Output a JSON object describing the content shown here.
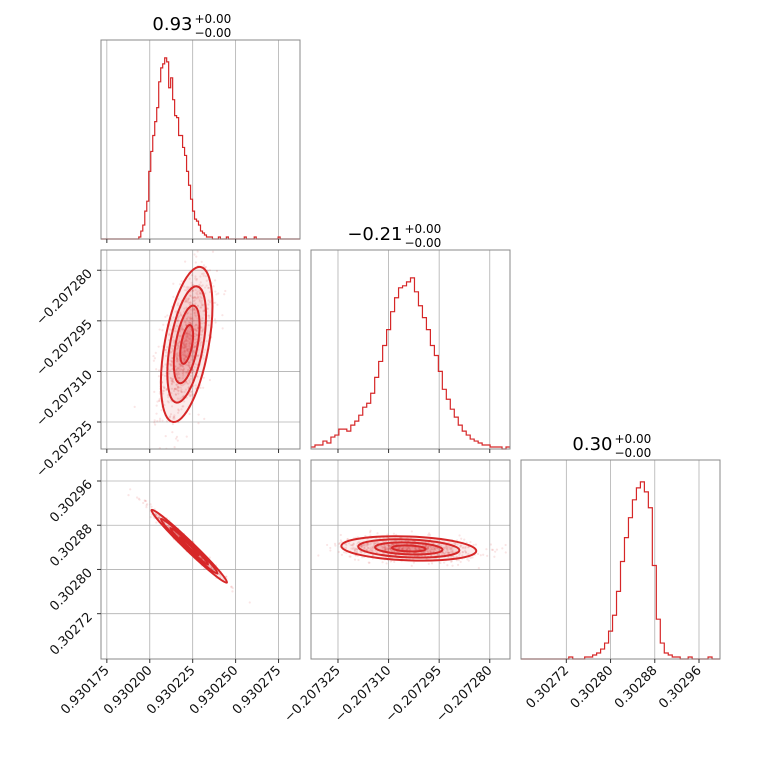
{
  "chart_data": {
    "type": "corner",
    "color": "#d62728",
    "parameters": [
      {
        "title": "0.93",
        "err_plus": "+0.00",
        "err_minus": "−0.00"
      },
      {
        "title": "−0.21",
        "err_plus": "+0.00",
        "err_minus": "−0.00"
      },
      {
        "title": "0.30",
        "err_plus": "+0.00",
        "err_minus": "−0.00"
      }
    ],
    "histograms": [
      {
        "param": 0,
        "xlim": [
          0.9301716,
          0.9302875
        ],
        "ylim": [
          0,
          1
        ],
        "values": [
          0.0,
          0.0,
          0.0,
          0.0,
          0.0,
          0.0,
          0.0,
          0.0,
          0.0,
          0.0,
          0.0,
          0.0,
          0.0,
          0.0,
          0.0,
          0.0,
          0.0,
          0.0,
          0.0,
          0.01,
          0.04,
          0.07,
          0.14,
          0.19,
          0.34,
          0.44,
          0.52,
          0.59,
          0.66,
          0.79,
          0.86,
          0.88,
          0.91,
          0.89,
          0.76,
          0.81,
          0.7,
          0.62,
          0.61,
          0.52,
          0.52,
          0.46,
          0.42,
          0.34,
          0.27,
          0.2,
          0.14,
          0.1,
          0.09,
          0.07,
          0.04,
          0.03,
          0.02,
          0.01,
          0.01,
          0.01,
          0.0,
          0.0,
          0.0,
          0.01,
          0.0,
          0.0,
          0.0,
          0.01,
          0.0,
          0.0,
          0.0,
          0.0,
          0.0,
          0.0,
          0.0,
          0.0,
          0.01,
          0.0,
          0.0,
          0.0,
          0.0,
          0.01,
          0.0,
          0.0,
          0.0,
          0.0,
          0.0,
          0.0,
          0.0,
          0.0,
          0.0,
          0.0,
          0.0,
          0.01,
          0.0,
          0.0,
          0.0,
          0.0,
          0.0,
          0.0,
          0.0,
          0.0,
          0.0,
          0.0
        ]
      },
      {
        "param": 1,
        "xlim": [
          -0.207333,
          -0.207274
        ],
        "ylim": [
          0,
          1
        ],
        "values": [
          0.01,
          0.02,
          0.02,
          0.04,
          0.03,
          0.06,
          0.07,
          0.1,
          0.1,
          0.09,
          0.12,
          0.14,
          0.17,
          0.21,
          0.23,
          0.28,
          0.36,
          0.44,
          0.52,
          0.6,
          0.69,
          0.76,
          0.81,
          0.82,
          0.84,
          0.86,
          0.79,
          0.72,
          0.66,
          0.6,
          0.52,
          0.47,
          0.39,
          0.3,
          0.25,
          0.2,
          0.16,
          0.12,
          0.09,
          0.07,
          0.05,
          0.04,
          0.03,
          0.02,
          0.02,
          0.01,
          0.01,
          0.01,
          0.0,
          0.01
        ]
      },
      {
        "param": 2,
        "xlim": [
          0.302638,
          0.302998
        ],
        "ylim": [
          0,
          1
        ],
        "values": [
          0.0,
          0.0,
          0.0,
          0.0,
          0.0,
          0.0,
          0.0,
          0.0,
          0.0,
          0.0,
          0.0,
          0.0,
          0.01,
          0.0,
          0.0,
          0.0,
          0.01,
          0.01,
          0.02,
          0.03,
          0.05,
          0.08,
          0.14,
          0.22,
          0.34,
          0.49,
          0.61,
          0.71,
          0.8,
          0.86,
          0.89,
          0.84,
          0.76,
          0.47,
          0.2,
          0.08,
          0.03,
          0.02,
          0.01,
          0.01,
          0.0,
          0.0,
          0.01,
          0.0,
          0.0,
          0.0,
          0.0,
          0.01,
          0.0,
          0.0
        ]
      }
    ],
    "scatter_panels": [
      {
        "x_param": 0,
        "y_param": 1,
        "xlim": [
          0.9301716,
          0.9302875
        ],
        "ylim": [
          -0.207333,
          -0.207274
        ],
        "center": [
          0.9302215,
          -0.207302
        ],
        "spread": [
          7.5e-06,
          1.15e-05
        ],
        "correlation": 0.5,
        "n_points": 900
      },
      {
        "x_param": 0,
        "y_param": 2,
        "xlim": [
          0.9301716,
          0.9302875
        ],
        "ylim": [
          0.302638,
          0.302998
        ],
        "center": [
          0.930223,
          0.302842
        ],
        "spread": [
          1.1e-05,
          3.3e-05
        ],
        "correlation": -0.985,
        "n_points": 500
      },
      {
        "x_param": 1,
        "y_param": 2,
        "xlim": [
          -0.207333,
          -0.207274
        ],
        "ylim": [
          0.302638,
          0.302998
        ],
        "center": [
          -0.207304,
          0.302838
        ],
        "spread": [
          1e-05,
          1.1e-05
        ],
        "correlation": -0.2,
        "n_points": 800
      }
    ],
    "ticks": {
      "p0": {
        "values": [
          0.930175,
          0.9302,
          0.930225,
          0.93025,
          0.930275
        ],
        "labels": [
          "0.930175",
          "0.930200",
          "0.930225",
          "0.930250",
          "0.930275"
        ]
      },
      "p1": {
        "values": [
          -0.20728,
          -0.207295,
          -0.20731,
          -0.207325
        ],
        "labels": [
          "−0.207280",
          "−0.207295",
          "−0.207310",
          "−0.207325"
        ]
      },
      "p1_bottom": {
        "values": [
          -0.207325,
          -0.20731,
          -0.207295,
          -0.20728
        ],
        "labels": [
          "−0.207325",
          "−0.207310",
          "−0.207295",
          "−0.207280"
        ]
      },
      "p2": {
        "values": [
          0.30296,
          0.30288,
          0.3028,
          0.30272
        ],
        "labels": [
          "0.30296",
          "0.30288",
          "0.30280",
          "0.30272"
        ]
      },
      "p2_bottom": {
        "values": [
          0.30272,
          0.3028,
          0.30288,
          0.30296
        ],
        "labels": [
          "0.30272",
          "0.30280",
          "0.30288",
          "0.30296"
        ]
      }
    },
    "grid": true
  }
}
